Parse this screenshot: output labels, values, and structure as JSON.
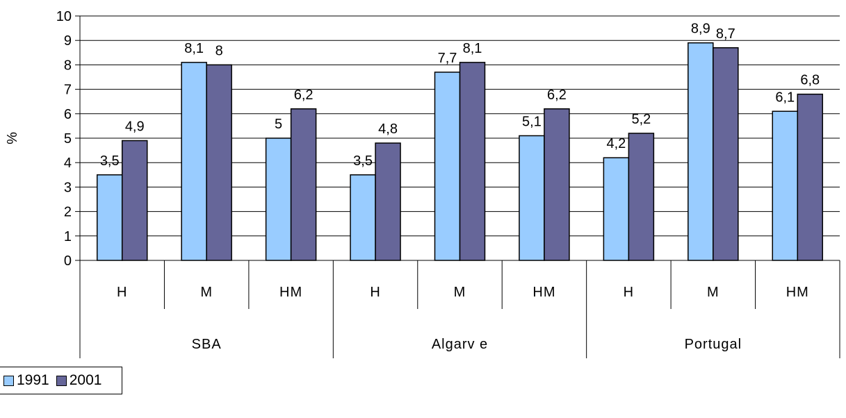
{
  "chart_data": {
    "type": "bar",
    "ylabel": "%",
    "ylim": [
      0,
      10
    ],
    "yticks": [
      "0",
      "1",
      "2",
      "3",
      "4",
      "5",
      "6",
      "7",
      "8",
      "9",
      "10"
    ],
    "grid": true,
    "legend_position": "bottom-left",
    "groups": [
      {
        "name": "SBA",
        "categories": [
          "H",
          "M",
          "HM"
        ]
      },
      {
        "name": "Algarv e",
        "categories": [
          "H",
          "M",
          "HM"
        ]
      },
      {
        "name": "Portugal",
        "categories": [
          "H",
          "M",
          "HM"
        ]
      }
    ],
    "categories": [
      "H",
      "M",
      "HM",
      "H",
      "M",
      "HM",
      "H",
      "M",
      "HM"
    ],
    "series": [
      {
        "name": "1991",
        "color": "#99ccff",
        "values": [
          3.5,
          8.1,
          5,
          3.5,
          7.7,
          5.1,
          4.2,
          8.9,
          6.1
        ],
        "labels": [
          "3,5",
          "8,1",
          "5",
          "3,5",
          "7,7",
          "5,1",
          "4,2",
          "8,9",
          "6,1"
        ]
      },
      {
        "name": "2001",
        "color": "#666699",
        "values": [
          4.9,
          8,
          6.2,
          4.8,
          8.1,
          6.2,
          5.2,
          8.7,
          6.8
        ],
        "labels": [
          "4,9",
          "8",
          "6,2",
          "4,8",
          "8,1",
          "6,2",
          "5,2",
          "8,7",
          "6,8"
        ]
      }
    ]
  }
}
